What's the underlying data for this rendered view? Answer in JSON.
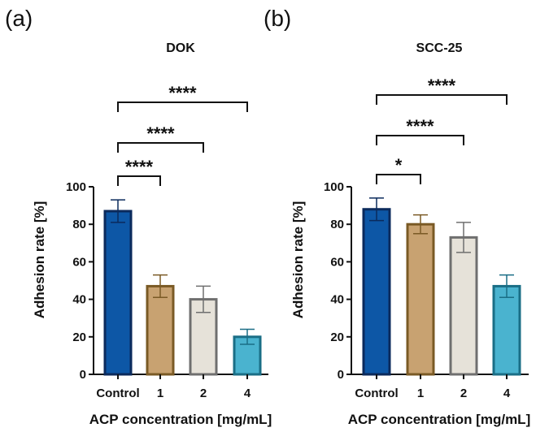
{
  "chart_data": [
    {
      "type": "bar",
      "panel_label": "(a)",
      "title": "DOK",
      "xlabel": "ACP concentration [mg/mL]",
      "ylabel": "Adhesion rate [%]",
      "categories": [
        "Control",
        "1",
        "2",
        "4"
      ],
      "values": [
        87,
        47,
        40,
        20
      ],
      "errors": [
        6,
        6,
        7,
        4
      ],
      "ylim": [
        0,
        100
      ],
      "yticks": [
        "0",
        "20",
        "40",
        "60",
        "80",
        "100"
      ],
      "colors": [
        "#0d57a6",
        "#c8a271",
        "#e6e2d9",
        "#4ab3cf"
      ],
      "edge_colors": [
        "#0b2a5c",
        "#7a5a25",
        "#6f6f6f",
        "#1a6e86"
      ],
      "significance": [
        {
          "from": 0,
          "to": 1,
          "label": "****"
        },
        {
          "from": 0,
          "to": 2,
          "label": "****"
        },
        {
          "from": 0,
          "to": 3,
          "label": "****"
        }
      ]
    },
    {
      "type": "bar",
      "panel_label": "(b)",
      "title": "SCC-25",
      "xlabel": "ACP concentration [mg/mL]",
      "ylabel": "Adhesion rate [%]",
      "categories": [
        "Control",
        "1",
        "2",
        "4"
      ],
      "values": [
        88,
        80,
        73,
        47
      ],
      "errors": [
        6,
        5,
        8,
        6
      ],
      "ylim": [
        0,
        100
      ],
      "yticks": [
        "0",
        "20",
        "40",
        "60",
        "80",
        "100"
      ],
      "colors": [
        "#0d57a6",
        "#c8a271",
        "#e6e2d9",
        "#4ab3cf"
      ],
      "edge_colors": [
        "#0b2a5c",
        "#7a5a25",
        "#6f6f6f",
        "#1a6e86"
      ],
      "significance": [
        {
          "from": 0,
          "to": 1,
          "label": "*"
        },
        {
          "from": 0,
          "to": 2,
          "label": "****"
        },
        {
          "from": 0,
          "to": 3,
          "label": "****"
        }
      ]
    }
  ]
}
